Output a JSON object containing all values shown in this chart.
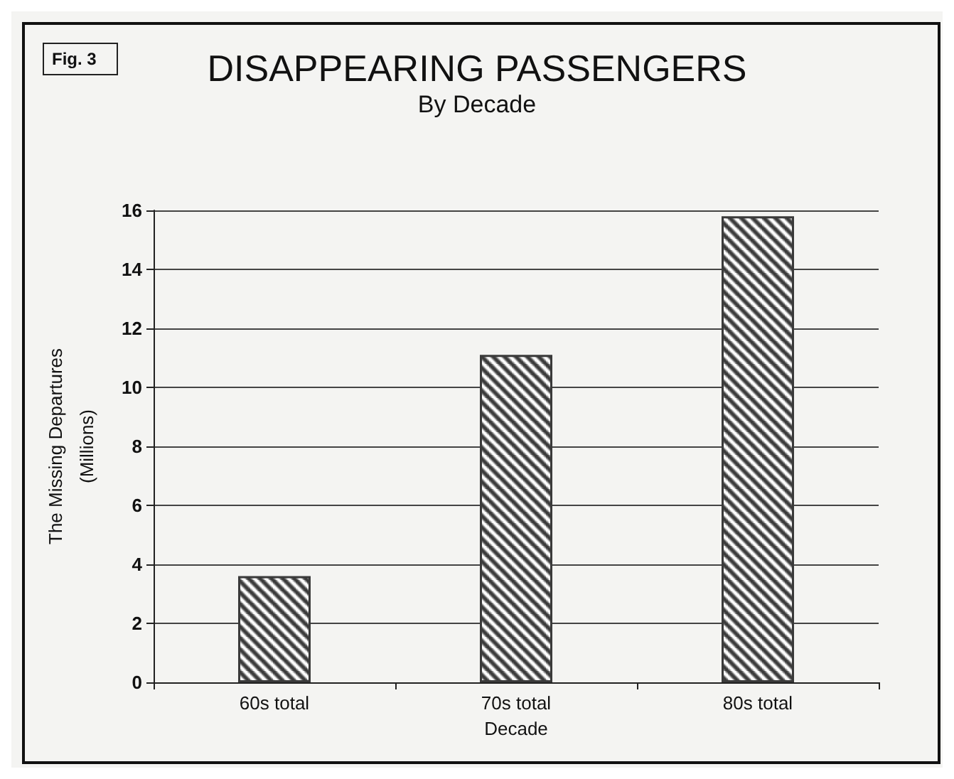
{
  "chart_data": {
    "type": "bar",
    "title": "DISAPPEARING PASSENGERS",
    "subtitle": "By Decade",
    "xlabel": "Decade",
    "ylabel": "The Missing Departures\n(Millions)",
    "annotations": [
      "Fig. 3"
    ],
    "categories": [
      "60s total",
      "70s total",
      "80s total"
    ],
    "values": [
      3.6,
      11.1,
      15.8
    ],
    "color": "#3a3a3a",
    "ylim": [
      0,
      16
    ],
    "yticks": [
      0,
      2,
      4,
      6,
      8,
      10,
      12,
      14,
      16
    ],
    "grid": "y"
  }
}
